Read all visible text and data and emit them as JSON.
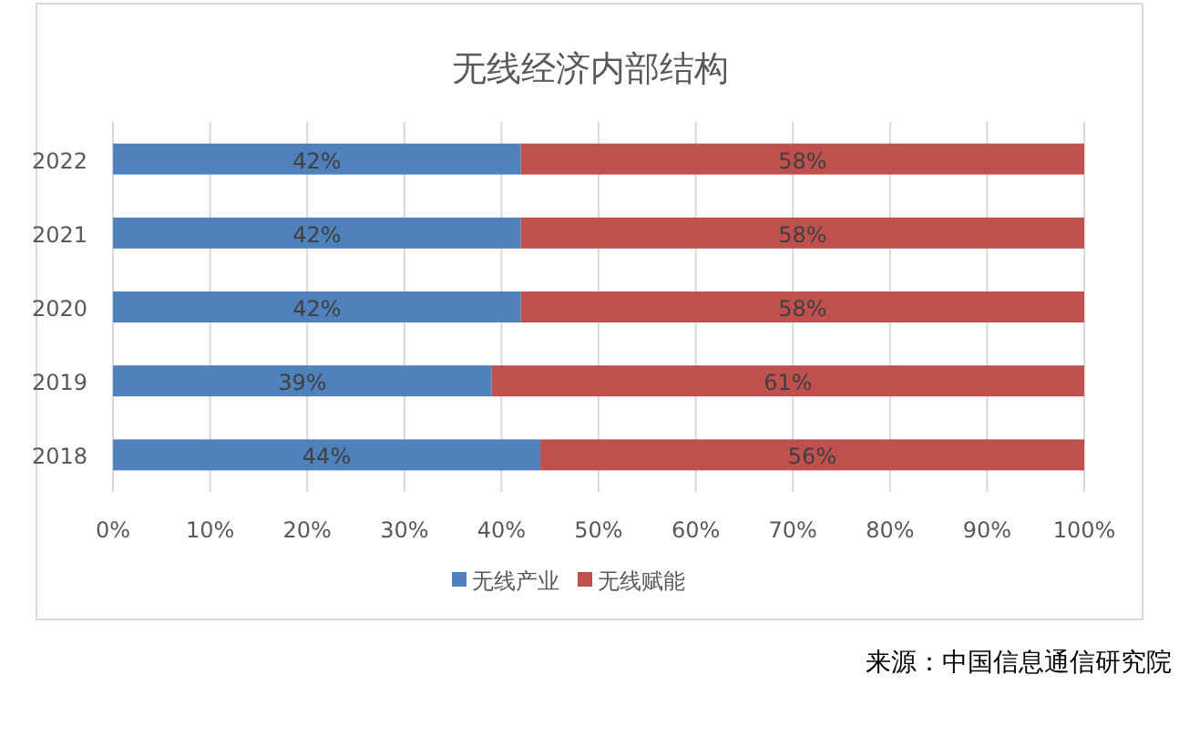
{
  "chart_data": {
    "type": "bar",
    "orientation": "horizontal",
    "stacked": true,
    "title": "无线经济内部结构",
    "categories": [
      "2022",
      "2021",
      "2020",
      "2019",
      "2018"
    ],
    "series": [
      {
        "name": "无线产业",
        "color": "#4f81bd",
        "values": [
          42,
          42,
          42,
          39,
          44
        ],
        "value_labels": [
          "42%",
          "42%",
          "42%",
          "39%",
          "44%"
        ]
      },
      {
        "name": "无线赋能",
        "color": "#c0504d",
        "values": [
          58,
          58,
          58,
          61,
          56
        ],
        "value_labels": [
          "58%",
          "58%",
          "58%",
          "61%",
          "56%"
        ]
      }
    ],
    "xlim": [
      0,
      100
    ],
    "xticks": [
      {
        "value": 0,
        "label": "0%"
      },
      {
        "value": 10,
        "label": "10%"
      },
      {
        "value": 20,
        "label": "20%"
      },
      {
        "value": 30,
        "label": "30%"
      },
      {
        "value": 40,
        "label": "40%"
      },
      {
        "value": 50,
        "label": "50%"
      },
      {
        "value": 60,
        "label": "60%"
      },
      {
        "value": 70,
        "label": "70%"
      },
      {
        "value": 80,
        "label": "80%"
      },
      {
        "value": 90,
        "label": "90%"
      },
      {
        "value": 100,
        "label": "100%"
      }
    ],
    "grid": "x",
    "legend": "bottom",
    "annotations": [
      "来源：中国信息通信研究院"
    ]
  }
}
